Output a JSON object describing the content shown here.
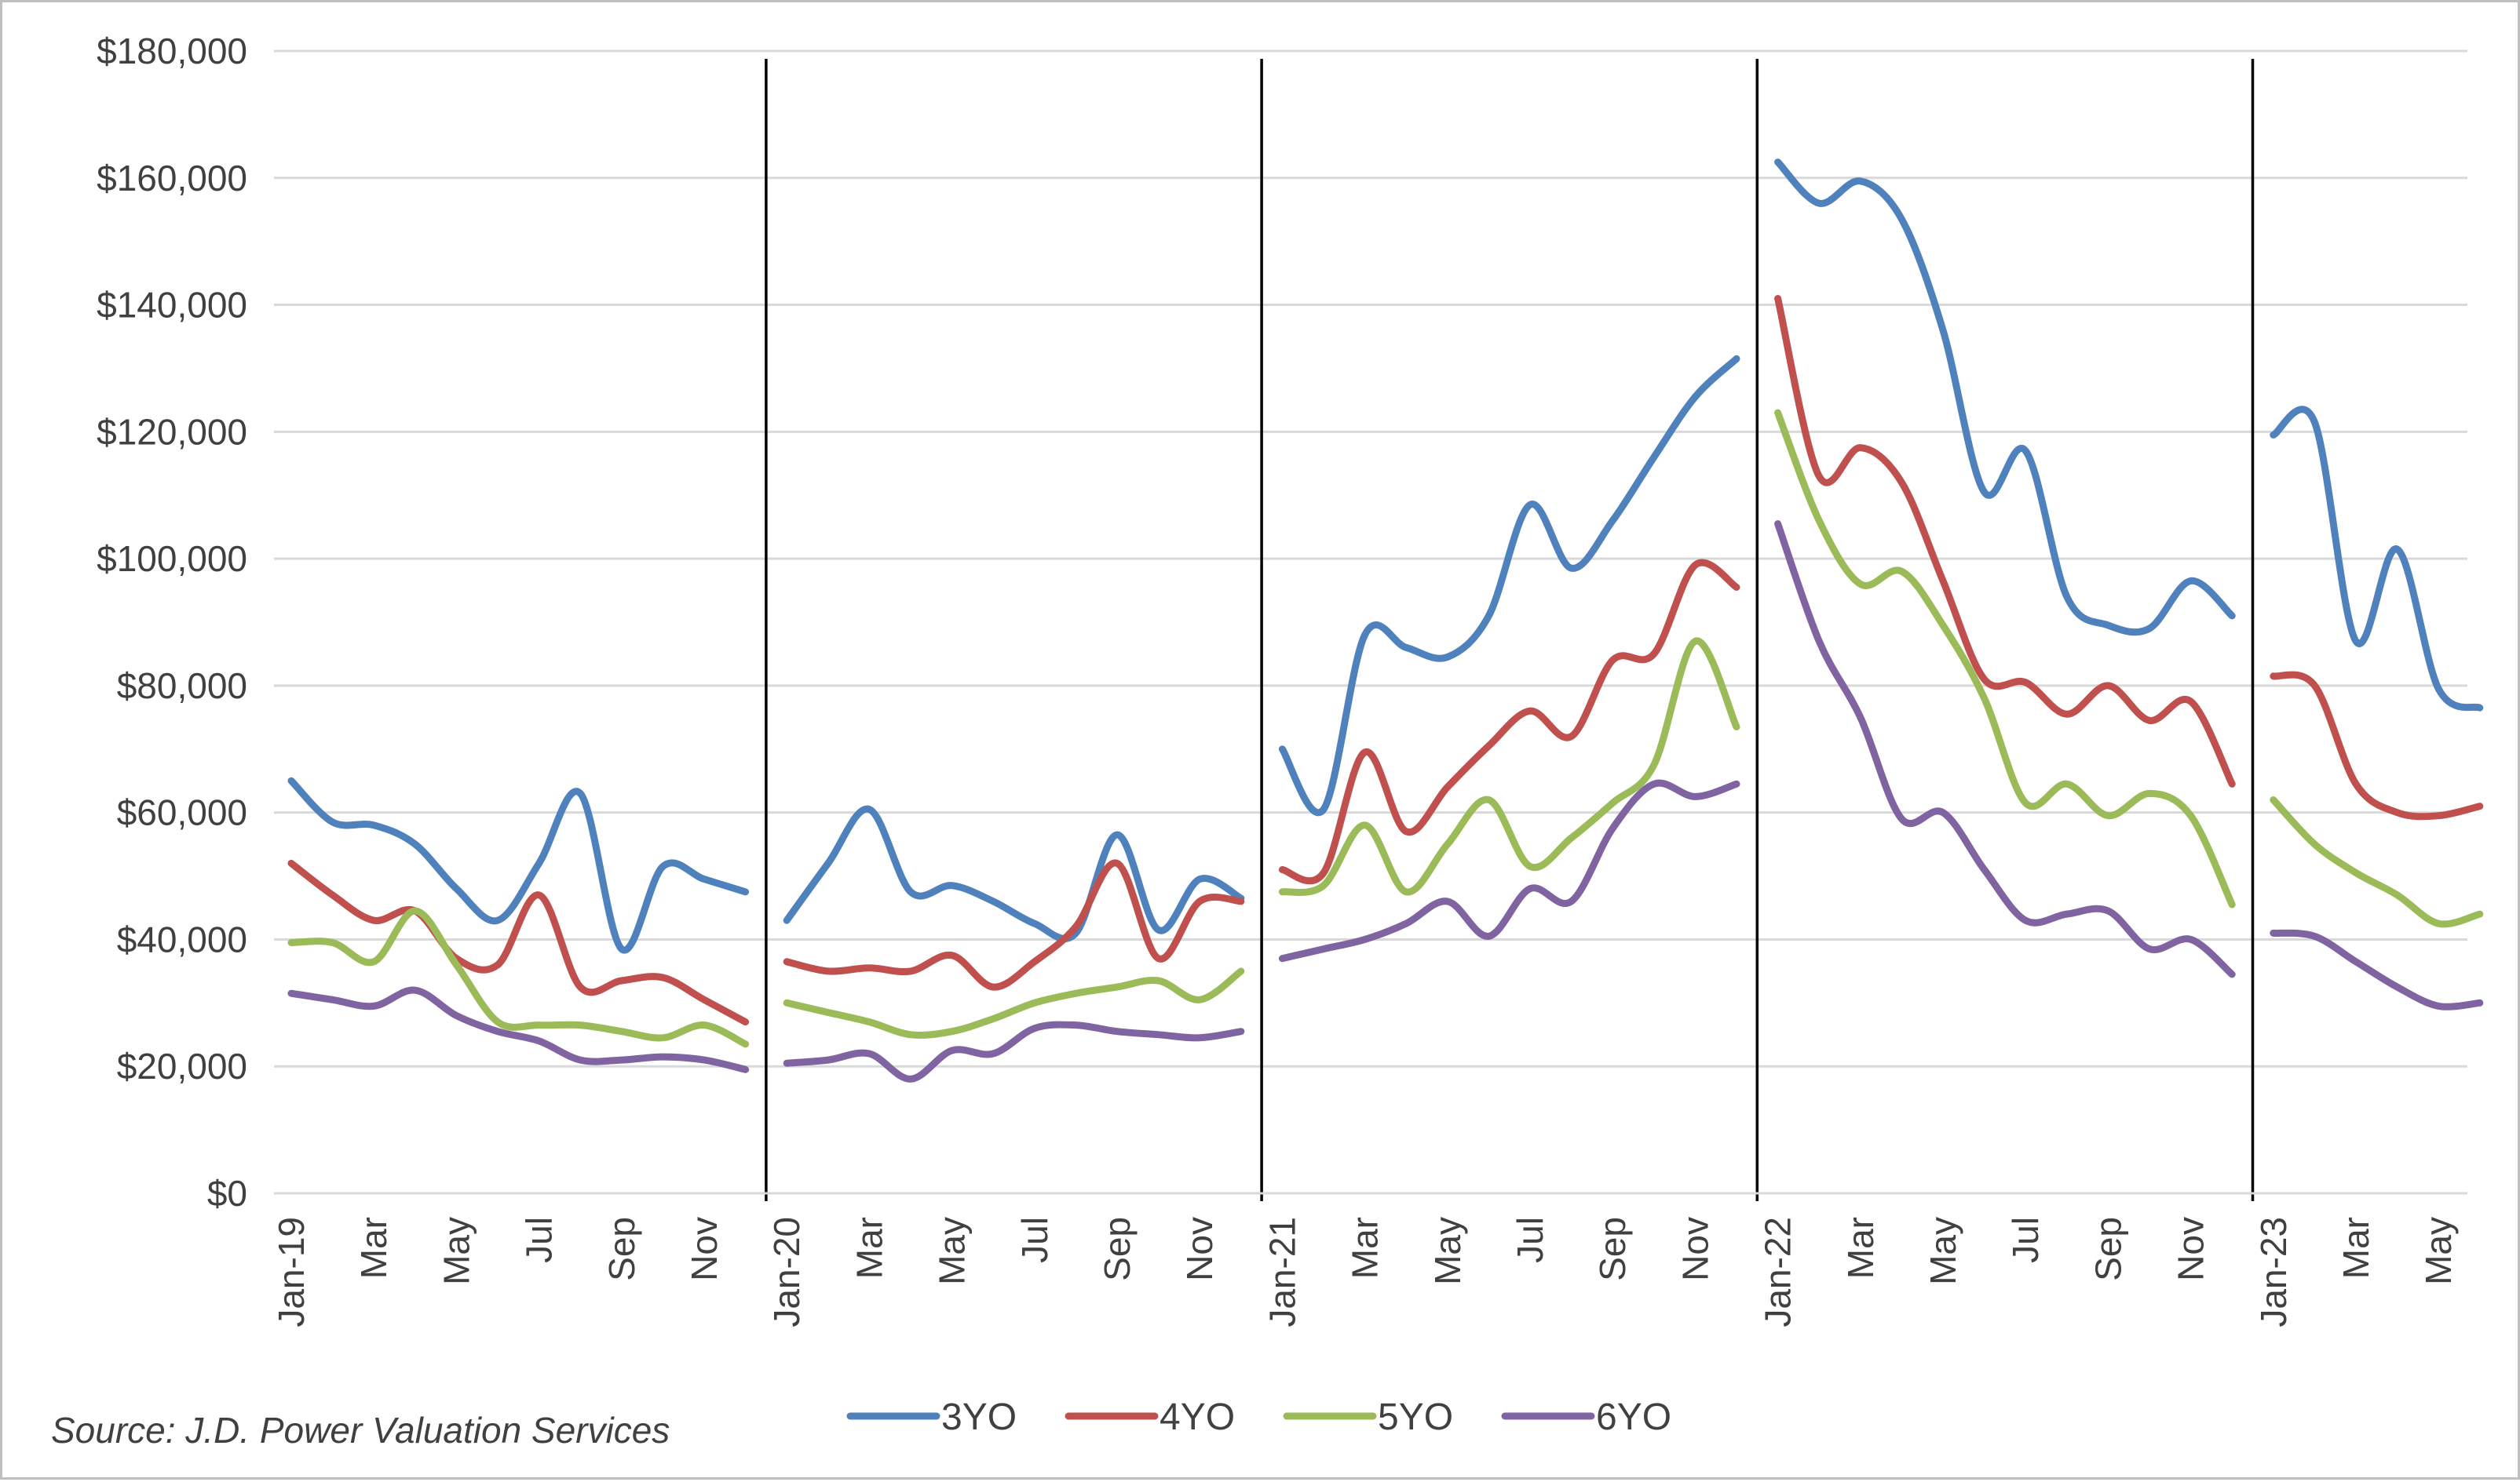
{
  "source_note": "Source: J.D. Power Valuation Services",
  "chart_data": {
    "type": "line",
    "title": "",
    "xlabel": "",
    "ylabel": "",
    "ylim": [
      0,
      180000
    ],
    "y_tick_values": [
      0,
      20000,
      40000,
      60000,
      80000,
      100000,
      120000,
      140000,
      160000,
      180000
    ],
    "y_tick_labels": [
      "$0",
      "$20,000",
      "$40,000",
      "$60,000",
      "$80,000",
      "$100,000",
      "$120,000",
      "$140,000",
      "$160,000",
      "$180,000"
    ],
    "grid": "horizontal",
    "legend_position": "bottom",
    "year_separators": true,
    "x_tick_labels": [
      "Jan-19",
      "",
      "Mar",
      "",
      "May",
      "",
      "Jul",
      "",
      "Sep",
      "",
      "Nov",
      "",
      "Jan-20",
      "",
      "Mar",
      "",
      "May",
      "",
      "Jul",
      "",
      "Sep",
      "",
      "Nov",
      "",
      "Jan-21",
      "",
      "Mar",
      "",
      "May",
      "",
      "Jul",
      "",
      "Sep",
      "",
      "Nov",
      "",
      "Jan-22",
      "",
      "Mar",
      "",
      "May",
      "",
      "Jul",
      "",
      "Sep",
      "",
      "Nov",
      "",
      "Jan-23",
      "",
      "Mar",
      "",
      "May",
      ""
    ],
    "segments": [
      {
        "year": "2019",
        "categories": [
          "Jan-19",
          "Feb-19",
          "Mar-19",
          "Apr-19",
          "May-19",
          "Jun-19",
          "Jul-19",
          "Aug-19",
          "Sep-19",
          "Oct-19",
          "Nov-19",
          "Dec-19"
        ]
      },
      {
        "year": "2020",
        "categories": [
          "Jan-20",
          "Feb-20",
          "Mar-20",
          "Apr-20",
          "May-20",
          "Jun-20",
          "Jul-20",
          "Aug-20",
          "Sep-20",
          "Oct-20",
          "Nov-20",
          "Dec-20"
        ]
      },
      {
        "year": "2021",
        "categories": [
          "Jan-21",
          "Feb-21",
          "Mar-21",
          "Apr-21",
          "May-21",
          "Jun-21",
          "Jul-21",
          "Aug-21",
          "Sep-21",
          "Oct-21",
          "Nov-21",
          "Dec-21"
        ]
      },
      {
        "year": "2022",
        "categories": [
          "Jan-22",
          "Feb-22",
          "Mar-22",
          "Apr-22",
          "May-22",
          "Jun-22",
          "Jul-22",
          "Aug-22",
          "Sep-22",
          "Oct-22",
          "Nov-22",
          "Dec-22"
        ]
      },
      {
        "year": "2023",
        "categories": [
          "Jan-23",
          "Feb-23",
          "Mar-23",
          "Apr-23",
          "May-23",
          "Jun-23"
        ]
      }
    ],
    "series": [
      {
        "name": "3YO",
        "color": "#4f81bd",
        "values": [
          [
            65000,
            58500,
            58000,
            55000,
            48000,
            43000,
            52000,
            63000,
            38500,
            51500,
            49500,
            47500
          ],
          [
            43000,
            52000,
            60500,
            47500,
            48500,
            46000,
            42500,
            41000,
            56500,
            41500,
            49500,
            46500
          ],
          [
            70000,
            60500,
            88000,
            86000,
            84500,
            91000,
            108500,
            98500,
            106000,
            116000,
            125500,
            131500
          ],
          [
            162500,
            156000,
            159500,
            153500,
            136000,
            110500,
            117000,
            94000,
            89500,
            89000,
            96500,
            91000
          ],
          [
            119500,
            121500,
            87000,
            101500,
            79500,
            76500
          ]
        ]
      },
      {
        "name": "4YO",
        "color": "#c0504d",
        "values": [
          [
            52000,
            47000,
            43000,
            44500,
            37000,
            36000,
            47000,
            32500,
            33500,
            34000,
            30500,
            27000
          ],
          [
            36500,
            35000,
            35500,
            35000,
            37500,
            32500,
            36500,
            42000,
            52000,
            37000,
            46000,
            46000
          ],
          [
            51000,
            50500,
            69500,
            57000,
            64000,
            70500,
            76000,
            72000,
            84000,
            85000,
            99000,
            95500
          ],
          [
            141000,
            113000,
            117500,
            112000,
            96500,
            81000,
            80500,
            75500,
            80000,
            74500,
            77500,
            64500
          ],
          [
            81500,
            80000,
            64500,
            60000,
            59500,
            61000
          ]
        ]
      },
      {
        "name": "5YO",
        "color": "#9bbb59",
        "values": [
          [
            39500,
            39500,
            36500,
            44500,
            36000,
            27000,
            26500,
            26500,
            25500,
            24500,
            26500,
            23500
          ],
          [
            30000,
            28500,
            27000,
            25000,
            25500,
            27500,
            30000,
            31500,
            32500,
            33500,
            30500,
            35000
          ],
          [
            47500,
            48500,
            58000,
            47500,
            55000,
            62000,
            51500,
            56000,
            61500,
            67500,
            87000,
            73500
          ],
          [
            123000,
            106000,
            96000,
            98000,
            89500,
            78000,
            61500,
            64500,
            59500,
            63000,
            59500,
            45500
          ],
          [
            62000,
            55000,
            50500,
            47000,
            42500,
            44000
          ]
        ]
      },
      {
        "name": "6YO",
        "color": "#8064a2",
        "values": [
          [
            31500,
            30500,
            29500,
            32000,
            28000,
            25500,
            24000,
            21000,
            21000,
            21500,
            21000,
            19500
          ],
          [
            20500,
            21000,
            22000,
            18000,
            22500,
            22000,
            26000,
            26500,
            25500,
            25000,
            24500,
            25500
          ],
          [
            37000,
            38500,
            40000,
            42500,
            46000,
            40500,
            48000,
            46000,
            57500,
            64500,
            62500,
            64500
          ],
          [
            105500,
            87000,
            75000,
            59000,
            60000,
            51000,
            43000,
            44000,
            44500,
            38500,
            40000,
            34500
          ],
          [
            41000,
            40500,
            36500,
            32500,
            29500,
            30000
          ]
        ]
      }
    ]
  }
}
